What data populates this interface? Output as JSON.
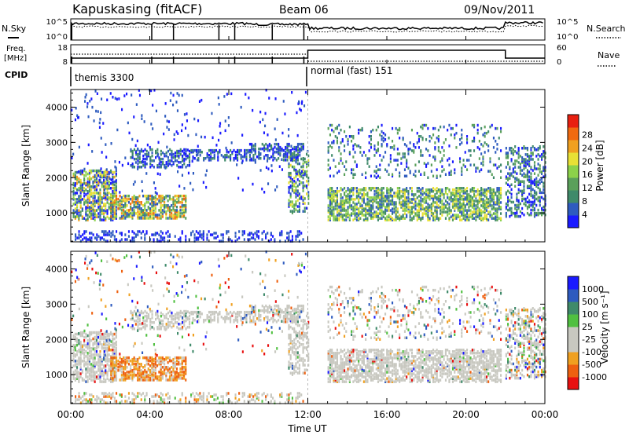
{
  "header": {
    "station": "Kapuskasing (fitACF)",
    "beam": "Beam 06",
    "date": "09/Nov/2011"
  },
  "panels": {
    "nsky_label": "N.Sky",
    "nsky_ticks": [
      "10^5",
      "10^0"
    ],
    "nsearch_label": "N.Search",
    "nsearch_ticks": [
      "10^5",
      "10^0"
    ],
    "freq_label": "Freq.",
    "freq_unit": "[MHz]",
    "freq_ticks": [
      "18",
      "8"
    ],
    "nave_label": "Nave",
    "nave_ticks": [
      "60",
      "0"
    ],
    "cpid_label": "CPID",
    "cpid_segments": [
      "themis 3300",
      "normal (fast) 151"
    ]
  },
  "colors": {
    "power": [
      "#1a1aff",
      "#2e5bbf",
      "#3f8a6a",
      "#5aa05a",
      "#8cd24a",
      "#e8e035",
      "#f0a020",
      "#f06a10",
      "#e82010"
    ],
    "velocity": [
      "#e81010",
      "#ee6010",
      "#f0a020",
      "#c8c8c0",
      "#c8c8c0",
      "#50c040",
      "#3f8a6a",
      "#2e5bbf",
      "#1a1aff"
    ],
    "ground_scatter": "#c8c8c0"
  },
  "chart_data": [
    {
      "type": "heatmap",
      "ylabel": "Slant Range [km]",
      "ylim": [
        180,
        4500
      ],
      "yticks": [
        "1000",
        "2000",
        "3000",
        "4000"
      ],
      "xticks": [
        "00:00",
        "04:00",
        "08:00",
        "12:00",
        "16:00",
        "20:00",
        "00:00"
      ],
      "colorbar_label": "Power [dB]",
      "colorbar_ticks": [
        "4",
        "8",
        "12",
        "16",
        "20",
        "24",
        "28"
      ],
      "colorbar_range": [
        0,
        30
      ]
    },
    {
      "type": "heatmap",
      "ylabel": "Slant Range [km]",
      "ylim": [
        180,
        4500
      ],
      "yticks": [
        "1000",
        "2000",
        "3000",
        "4000"
      ],
      "xticks": [
        "00:00",
        "04:00",
        "08:00",
        "12:00",
        "16:00",
        "20:00",
        "00:00"
      ],
      "xlabel": "Time UT",
      "colorbar_label": "Velocity [m s⁻¹]",
      "colorbar_ticks": [
        "1000",
        "500",
        "100",
        "25",
        "-25",
        "-100",
        "-500",
        "-1000"
      ]
    }
  ]
}
